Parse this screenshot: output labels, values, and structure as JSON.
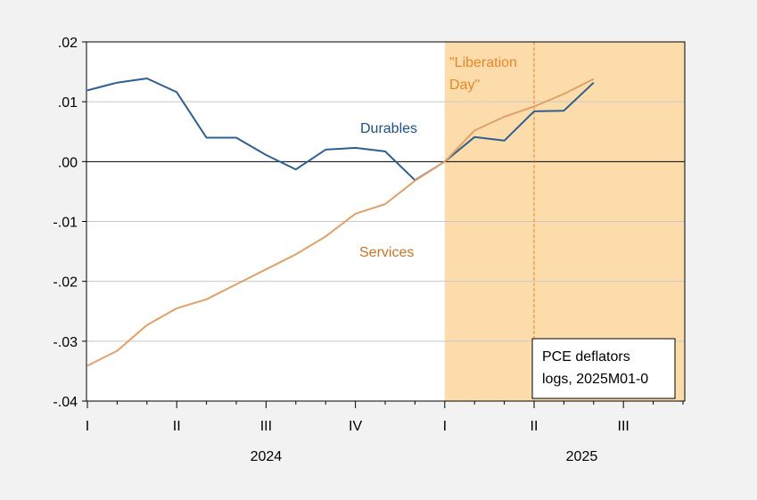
{
  "chart_data": {
    "type": "line",
    "x": [
      "2024M01",
      "2024M02",
      "2024M03",
      "2024M04",
      "2024M05",
      "2024M06",
      "2024M07",
      "2024M08",
      "2024M09",
      "2024M10",
      "2024M11",
      "2024M12",
      "2025M01",
      "2025M02",
      "2025M03",
      "2025M04",
      "2025M05",
      "2025M06"
    ],
    "series": [
      {
        "name": "Durables",
        "color": "#2f5f8f",
        "values": [
          0.0119,
          0.0132,
          0.0139,
          0.0116,
          0.004,
          0.004,
          0.0011,
          -0.0013,
          0.002,
          0.0023,
          0.0017,
          -0.0031,
          0.0,
          0.0041,
          0.0035,
          0.0084,
          0.0085,
          0.0132
        ]
      },
      {
        "name": "Services",
        "color": "#e0a06a",
        "values": [
          -0.0341,
          -0.0316,
          -0.0273,
          -0.0245,
          -0.023,
          -0.0205,
          -0.018,
          -0.0155,
          -0.0125,
          -0.0087,
          -0.0071,
          -0.0032,
          0.0,
          0.0052,
          0.0075,
          0.0092,
          0.0113,
          0.0138
        ]
      }
    ],
    "ylim": [
      -0.04,
      0.02
    ],
    "yticks": [
      ".02",
      ".01",
      ".00",
      "-.01",
      "-.02",
      "-.03",
      "-.04"
    ],
    "ytick_values": [
      0.02,
      0.01,
      0.0,
      -0.01,
      -0.02,
      -0.03,
      -0.04
    ],
    "xticks": [
      "I",
      "II",
      "III",
      "IV",
      "I",
      "II",
      "III"
    ],
    "xtick_months": [
      0,
      3,
      6,
      9,
      12,
      15,
      18
    ],
    "years": [
      {
        "label": "2024",
        "center_month": 6
      },
      {
        "label": "2025",
        "center_month": 16.6
      }
    ],
    "shaded_start_month": 12,
    "vline_month": 15,
    "annotation": {
      "line1": "\"Liberation",
      "line2": "Day\""
    },
    "legend_box": {
      "line1": "PCE deflators",
      "line2": "logs, 2025M01-0"
    },
    "shade_color": "#fddcac",
    "annotation_color": "#e8862a",
    "grid": true
  }
}
